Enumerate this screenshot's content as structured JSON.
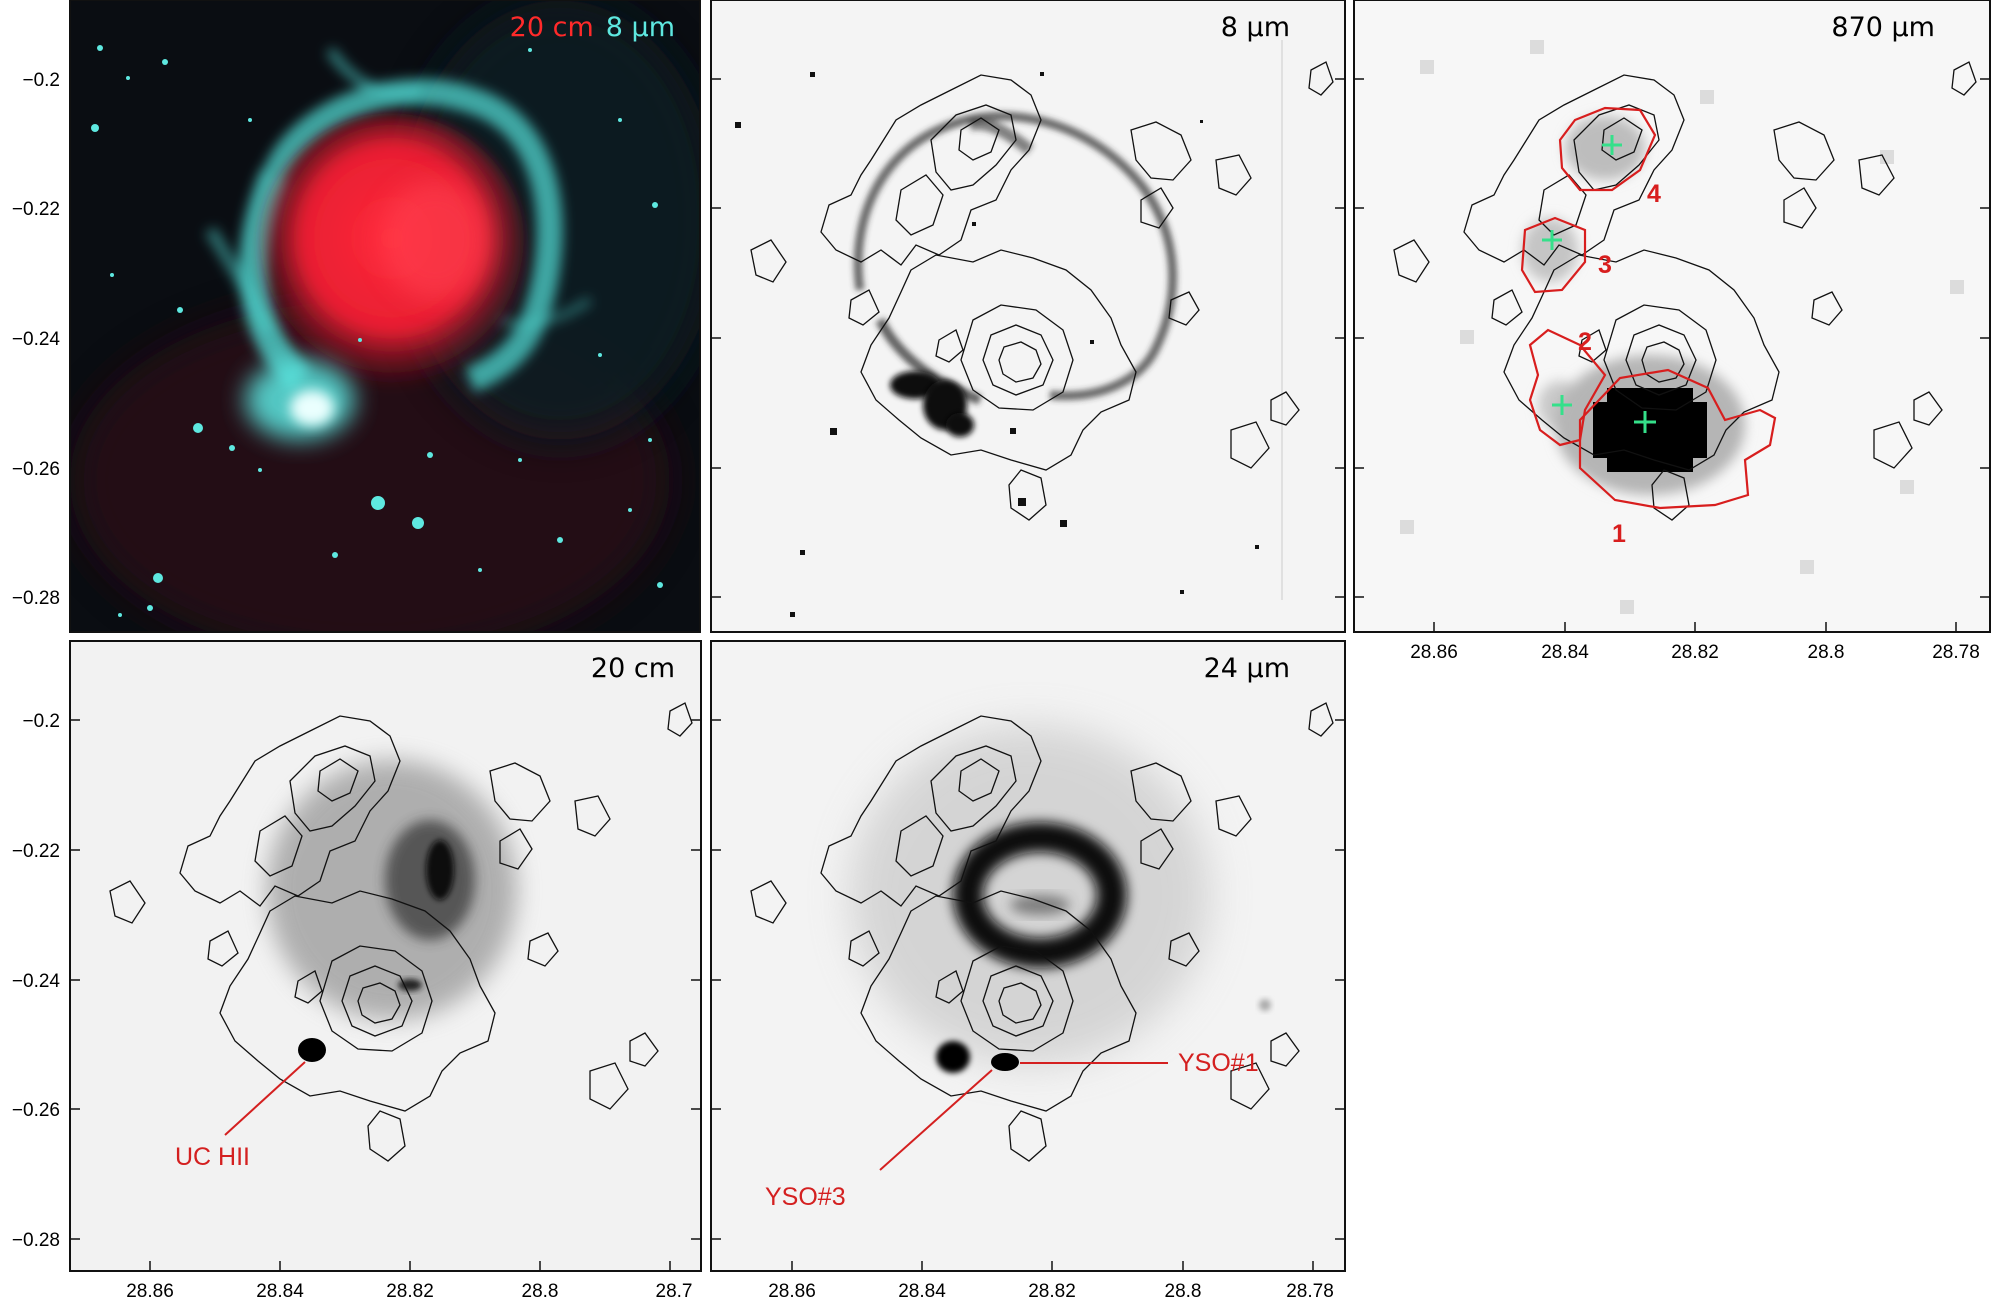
{
  "colors": {
    "red_band": "#ff2a2a",
    "cyan_band": "#5ee8e0",
    "annotation_red": "#d42020",
    "peak_marker_green": "#35e08a",
    "contour_black": "#111111",
    "contour_red": "#d81e1e"
  },
  "panels": [
    {
      "id": "composite",
      "label_parts": [
        "20 cm",
        "8 μm"
      ]
    },
    {
      "id": "p8um",
      "label": "8 μm"
    },
    {
      "id": "p870um",
      "label": "870 μm"
    },
    {
      "id": "p20cm",
      "label": "20 cm"
    },
    {
      "id": "p24um",
      "label": "24 μm"
    }
  ],
  "axes": {
    "y_ticks": [
      "−0.2",
      "−0.22",
      "−0.24",
      "−0.26",
      "−0.28"
    ],
    "x_ticks_a": [
      "28.86",
      "28.84",
      "28.82",
      "28.8",
      "28.78"
    ],
    "x_ticks_b": [
      "28.86",
      "28.84",
      "28.82",
      "28.8",
      "28.7"
    ]
  },
  "clumps": [
    "1",
    "2",
    "3",
    "4"
  ],
  "annotations": {
    "uc_hii": "UC HII",
    "yso1": "YSO#1",
    "yso3": "YSO#3"
  }
}
